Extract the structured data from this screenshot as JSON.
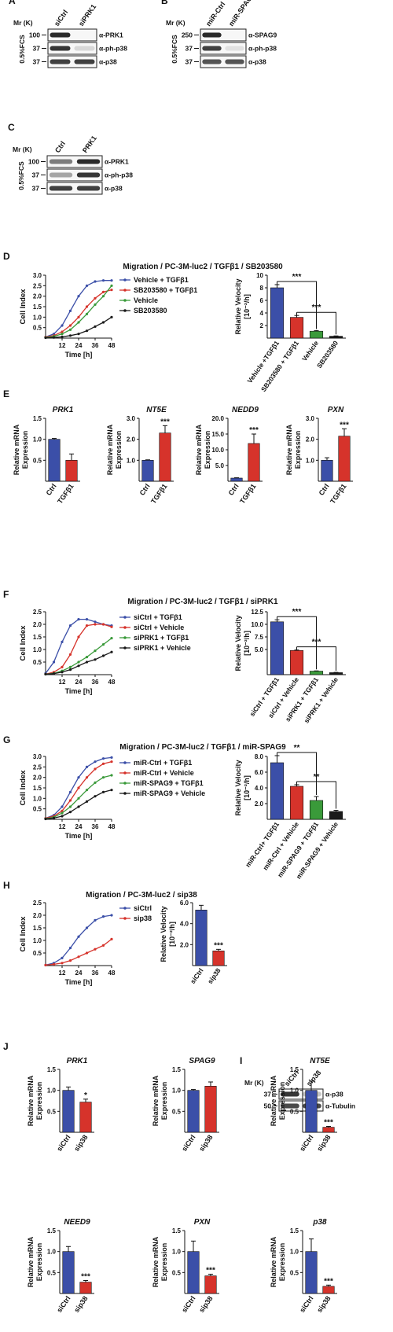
{
  "colors": {
    "blue": "#3b4fa8",
    "red": "#d6332b",
    "green": "#3a9a3a",
    "black": "#1a1a1a",
    "band": "#2b2b2b"
  },
  "blots": {
    "A": {
      "letter": "A",
      "mr": "Mr (K)",
      "lanes": [
        "siCtrl",
        "siPRK1"
      ],
      "condition": "0.5%FCS",
      "rows": [
        {
          "marker": "100",
          "label": "α-PRK1",
          "intensity": [
            1.0,
            0.0
          ]
        },
        {
          "marker": "37",
          "label": "α-ph-p38",
          "intensity": [
            0.95,
            0.15
          ]
        },
        {
          "marker": "37",
          "label": "α-p38",
          "intensity": [
            0.9,
            0.9
          ]
        }
      ]
    },
    "B": {
      "letter": "B",
      "mr": "Mr (K)",
      "lanes": [
        "miR-Ctrl",
        "miR-SPAG9"
      ],
      "condition": "0.5%FCS",
      "rows": [
        {
          "marker": "250",
          "label": "α-SPAG9",
          "intensity": [
            1.0,
            0.0
          ]
        },
        {
          "marker": "37",
          "label": "α-ph-p38",
          "intensity": [
            0.9,
            0.1
          ]
        },
        {
          "marker": "37",
          "label": "α-p38",
          "intensity": [
            0.8,
            0.8
          ]
        }
      ]
    },
    "C": {
      "letter": "C",
      "mr": "Mr (K)",
      "lanes": [
        "Ctrl",
        "PRK1"
      ],
      "condition": "0.5%FCS",
      "rows": [
        {
          "marker": "100",
          "label": "α-PRK1",
          "intensity": [
            0.6,
            1.0
          ]
        },
        {
          "marker": "37",
          "label": "α-ph-p38",
          "intensity": [
            0.4,
            0.95
          ]
        },
        {
          "marker": "37",
          "label": "α-p38",
          "intensity": [
            0.9,
            0.9
          ]
        }
      ]
    },
    "I": {
      "letter": "I",
      "mr": "Mr (K)",
      "lanes": [
        "siCtrl",
        "sip38"
      ],
      "condition": "",
      "rows": [
        {
          "marker": "37",
          "label": "α-p38",
          "intensity": [
            0.95,
            0.25
          ]
        },
        {
          "marker": "50",
          "label": "α-Tubulin",
          "intensity": [
            0.85,
            0.85
          ]
        }
      ]
    }
  },
  "chart_data": [
    {
      "panel": "D",
      "type": "line",
      "title": "Migration / PC-3M-luc2 / TGFβ1 / SB203580",
      "xlabel": "Time [h]",
      "ylabel": "Cell Index",
      "x": [
        0,
        6,
        12,
        18,
        24,
        30,
        36,
        42,
        48
      ],
      "xticks": [
        12,
        24,
        36,
        48
      ],
      "ylim": [
        0,
        3.0
      ],
      "yticks": [
        "0.5",
        "1.0",
        "1.5",
        "2.0",
        "2.5",
        "3.0"
      ],
      "ytickvals": [
        0.5,
        1.0,
        1.5,
        2.0,
        2.5,
        3.0
      ],
      "series": [
        {
          "name": "Vehicle + TGFβ1",
          "color": "blue",
          "values": [
            0.05,
            0.2,
            0.6,
            1.3,
            2.0,
            2.5,
            2.7,
            2.75,
            2.75
          ]
        },
        {
          "name": "SB203580 + TGFβ1",
          "color": "red",
          "values": [
            0.05,
            0.12,
            0.3,
            0.6,
            1.0,
            1.5,
            1.9,
            2.2,
            2.3
          ]
        },
        {
          "name": "Vehicle",
          "color": "green",
          "values": [
            0.03,
            0.08,
            0.2,
            0.4,
            0.75,
            1.15,
            1.6,
            2.0,
            2.5
          ]
        },
        {
          "name": "SB203580",
          "color": "black",
          "values": [
            0.02,
            0.03,
            0.06,
            0.12,
            0.2,
            0.35,
            0.55,
            0.75,
            1.0
          ]
        }
      ]
    },
    {
      "panel": "D",
      "type": "bar",
      "ylabel": "Relative Velocity [10⁻²/h]",
      "categories": [
        "Vehicle +TGFβ1",
        "SB203580 + TGFβ1",
        "Vehicle",
        "SB203580"
      ],
      "values": [
        8.0,
        3.3,
        1.1,
        0.3
      ],
      "errors": [
        0.5,
        0.3,
        0.1,
        0.05
      ],
      "colors": [
        "blue",
        "red",
        "green",
        "black"
      ],
      "ylim": [
        0,
        10
      ],
      "yticks": [
        "2",
        "4",
        "6",
        "8",
        "10"
      ],
      "ytickvals": [
        2,
        4,
        6,
        8,
        10
      ],
      "significance": [
        {
          "from": 0,
          "to": 2,
          "label": "***"
        },
        {
          "from": 1,
          "to": 3,
          "label": "***"
        }
      ]
    },
    {
      "panel": "E",
      "type": "bar",
      "gene": "PRK1",
      "ylabel": "Relative mRNA Expression",
      "categories": [
        "Ctrl",
        "TGFβ1"
      ],
      "values": [
        1.0,
        0.5
      ],
      "errors": [
        0.02,
        0.15
      ],
      "colors": [
        "blue",
        "red"
      ],
      "ylim": [
        0,
        1.5
      ],
      "yticks": [
        "0.5",
        "1.0",
        "1.5"
      ],
      "ytickvals": [
        0.5,
        1.0,
        1.5
      ],
      "stars": [
        "",
        ""
      ]
    },
    {
      "panel": "E",
      "type": "bar",
      "gene": "NT5E",
      "ylabel": "Relative mRNA Expression",
      "categories": [
        "Ctrl",
        "TGFβ1"
      ],
      "values": [
        1.0,
        2.3
      ],
      "errors": [
        0.02,
        0.35
      ],
      "colors": [
        "blue",
        "red"
      ],
      "ylim": [
        0,
        3.0
      ],
      "yticks": [
        "1.0",
        "2.0",
        "3.0"
      ],
      "ytickvals": [
        1.0,
        2.0,
        3.0
      ],
      "stars": [
        "",
        "***"
      ]
    },
    {
      "panel": "E",
      "type": "bar",
      "gene": "NEDD9",
      "ylabel": "Relative mRNA Expression",
      "categories": [
        "Ctrl",
        "TGFβ1"
      ],
      "values": [
        1.0,
        12.0
      ],
      "errors": [
        0.1,
        3.0
      ],
      "colors": [
        "blue",
        "red"
      ],
      "ylim": [
        0,
        20
      ],
      "yticks": [
        "5.0",
        "10.0",
        "15.0",
        "20.0"
      ],
      "ytickvals": [
        5,
        10,
        15,
        20
      ],
      "stars": [
        "",
        "***"
      ]
    },
    {
      "panel": "E",
      "type": "bar",
      "gene": "PXN",
      "ylabel": "Relative mRNA Expression",
      "categories": [
        "Ctrl",
        "TGFβ1"
      ],
      "values": [
        1.0,
        2.15
      ],
      "errors": [
        0.12,
        0.35
      ],
      "colors": [
        "blue",
        "red"
      ],
      "ylim": [
        0,
        3.0
      ],
      "yticks": [
        "1.0",
        "2.0",
        "3.0"
      ],
      "ytickvals": [
        1.0,
        2.0,
        3.0
      ],
      "stars": [
        "",
        "***"
      ]
    },
    {
      "panel": "F",
      "type": "line",
      "title": "Migration / PC-3M-luc2 / TGFβ1 / siPRK1",
      "xlabel": "Time [h]",
      "ylabel": "Cell Index",
      "x": [
        0,
        6,
        12,
        18,
        24,
        30,
        36,
        42,
        48
      ],
      "xticks": [
        12,
        24,
        36,
        48
      ],
      "ylim": [
        0,
        2.5
      ],
      "yticks": [
        "0.5",
        "1.0",
        "1.5",
        "2.0",
        "2.5"
      ],
      "ytickvals": [
        0.5,
        1.0,
        1.5,
        2.0,
        2.5
      ],
      "series": [
        {
          "name": "siCtrl + TGFβ1",
          "color": "blue",
          "values": [
            0.05,
            0.5,
            1.3,
            1.95,
            2.2,
            2.2,
            2.1,
            2.0,
            1.95
          ]
        },
        {
          "name": "siCtrl + Vehicle",
          "color": "red",
          "values": [
            0.02,
            0.1,
            0.3,
            0.8,
            1.5,
            1.95,
            2.0,
            2.0,
            1.9
          ]
        },
        {
          "name": "siPRK1 + TGFβ1",
          "color": "green",
          "values": [
            0.02,
            0.05,
            0.15,
            0.3,
            0.5,
            0.7,
            0.95,
            1.2,
            1.45
          ]
        },
        {
          "name": "siPRK1 + Vehicle",
          "color": "black",
          "values": [
            0.02,
            0.04,
            0.1,
            0.2,
            0.35,
            0.5,
            0.6,
            0.75,
            0.9
          ]
        }
      ]
    },
    {
      "panel": "F",
      "type": "bar",
      "ylabel": "Relative Velocity [10⁻²/h]",
      "categories": [
        "siCtrl + TGFβ1",
        "siCtrl + Vehicle",
        "siPRK1 + TGFβ1",
        "siPRK1 + Vehicle"
      ],
      "values": [
        10.5,
        4.8,
        0.7,
        0.4
      ],
      "errors": [
        0.4,
        0.1,
        0.05,
        0.05
      ],
      "colors": [
        "blue",
        "red",
        "green",
        "black"
      ],
      "ylim": [
        0,
        12.5
      ],
      "yticks": [
        "5.0",
        "7.5",
        "10.0",
        "12.5"
      ],
      "ytickvals": [
        5,
        7.5,
        10,
        12.5
      ],
      "significance": [
        {
          "from": 0,
          "to": 2,
          "label": "***"
        },
        {
          "from": 1,
          "to": 3,
          "label": "***"
        }
      ]
    },
    {
      "panel": "G",
      "type": "line",
      "title": "Migration / PC-3M-luc2 / TGFβ1 / miR-SPAG9",
      "xlabel": "Time [h]",
      "ylabel": "Cell Index",
      "x": [
        0,
        6,
        12,
        18,
        24,
        30,
        36,
        42,
        48
      ],
      "xticks": [
        12,
        24,
        36,
        48
      ],
      "ylim": [
        0,
        3.0
      ],
      "yticks": [
        "0.5",
        "1.0",
        "1.5",
        "2.0",
        "2.5",
        "3.0"
      ],
      "ytickvals": [
        0.5,
        1.0,
        1.5,
        2.0,
        2.5,
        3.0
      ],
      "series": [
        {
          "name": "miR-Ctrl + TGFβ1",
          "color": "blue",
          "values": [
            0.05,
            0.2,
            0.6,
            1.3,
            2.0,
            2.5,
            2.75,
            2.9,
            2.95
          ]
        },
        {
          "name": "miR-Ctrl + Vehicle",
          "color": "red",
          "values": [
            0.05,
            0.15,
            0.4,
            0.9,
            1.5,
            2.0,
            2.4,
            2.65,
            2.75
          ]
        },
        {
          "name": "miR-SPAG9 + TGFβ1",
          "color": "green",
          "values": [
            0.03,
            0.1,
            0.3,
            0.6,
            1.0,
            1.4,
            1.75,
            2.0,
            2.1
          ]
        },
        {
          "name": "miR-SPAG9 + Vehicle",
          "color": "black",
          "values": [
            0.02,
            0.06,
            0.15,
            0.35,
            0.6,
            0.85,
            1.1,
            1.3,
            1.4
          ]
        }
      ]
    },
    {
      "panel": "G",
      "type": "bar",
      "ylabel": "Relative Velocity [10⁻²/h]",
      "categories": [
        "miR-Ctrl+ TGFβ1",
        "miR-Ctrl + Vehicle",
        "miR-SPAG9 + TGFβ1",
        "miR-SPAG9 + Vehicle"
      ],
      "values": [
        7.2,
        4.2,
        2.4,
        1.0
      ],
      "errors": [
        0.9,
        0.2,
        0.5,
        0.15
      ],
      "colors": [
        "blue",
        "red",
        "green",
        "black"
      ],
      "ylim": [
        0,
        8.0
      ],
      "yticks": [
        "2.0",
        "4.0",
        "6.0",
        "8.0"
      ],
      "ytickvals": [
        2,
        4,
        6,
        8
      ],
      "significance": [
        {
          "from": 0,
          "to": 2,
          "label": "**"
        },
        {
          "from": 1,
          "to": 3,
          "label": "**"
        }
      ]
    },
    {
      "panel": "H",
      "type": "line",
      "title": "Migration / PC-3M-luc2 / sip38",
      "xlabel": "Time [h]",
      "ylabel": "Cell Index",
      "x": [
        0,
        6,
        12,
        18,
        24,
        30,
        36,
        42,
        48
      ],
      "xticks": [
        12,
        24,
        36,
        48
      ],
      "ylim": [
        0,
        2.5
      ],
      "yticks": [
        "0.5",
        "1.0",
        "1.5",
        "2.0",
        "2.5"
      ],
      "ytickvals": [
        0.5,
        1.0,
        1.5,
        2.0,
        2.5
      ],
      "series": [
        {
          "name": "siCtrl",
          "color": "blue",
          "values": [
            0.02,
            0.1,
            0.3,
            0.7,
            1.15,
            1.5,
            1.8,
            1.95,
            2.0
          ]
        },
        {
          "name": "sip38",
          "color": "red",
          "values": [
            0.02,
            0.05,
            0.1,
            0.2,
            0.35,
            0.5,
            0.65,
            0.8,
            1.05
          ]
        }
      ]
    },
    {
      "panel": "H",
      "type": "bar",
      "ylabel": "Relative Velocity [10⁻²/h]",
      "categories": [
        "siCtrl",
        "sip38"
      ],
      "values": [
        5.3,
        1.4
      ],
      "errors": [
        0.45,
        0.15
      ],
      "colors": [
        "blue",
        "red"
      ],
      "ylim": [
        0,
        6.0
      ],
      "yticks": [
        "2.0",
        "4.0",
        "6.0"
      ],
      "ytickvals": [
        2,
        4,
        6
      ],
      "stars": [
        "",
        "***"
      ]
    },
    {
      "panel": "J",
      "type": "bar",
      "gene": "PRK1",
      "ylabel": "Relative mRNA Expression",
      "categories": [
        "siCtrl",
        "sip38"
      ],
      "values": [
        1.0,
        0.72
      ],
      "errors": [
        0.08,
        0.07
      ],
      "colors": [
        "blue",
        "red"
      ],
      "ylim": [
        0,
        1.5
      ],
      "yticks": [
        "0.5",
        "1.0",
        "1.5"
      ],
      "ytickvals": [
        0.5,
        1.0,
        1.5
      ],
      "stars": [
        "",
        "*"
      ]
    },
    {
      "panel": "J",
      "type": "bar",
      "gene": "SPAG9",
      "ylabel": "Relative mRNA Expression",
      "categories": [
        "siCtrl",
        "sip38"
      ],
      "values": [
        1.0,
        1.1
      ],
      "errors": [
        0.02,
        0.1
      ],
      "colors": [
        "blue",
        "red"
      ],
      "ylim": [
        0,
        1.5
      ],
      "yticks": [
        "0.5",
        "1.0",
        "1.5"
      ],
      "ytickvals": [
        0.5,
        1.0,
        1.5
      ],
      "stars": [
        "",
        ""
      ]
    },
    {
      "panel": "J",
      "type": "bar",
      "gene": "NT5E",
      "ylabel": "Relative mRNA Expression",
      "categories": [
        "siCtrl",
        "sip38"
      ],
      "values": [
        1.0,
        0.12
      ],
      "errors": [
        0.22,
        0.02
      ],
      "colors": [
        "blue",
        "red"
      ],
      "ylim": [
        0,
        1.5
      ],
      "yticks": [
        "0.5",
        "1.0",
        "1.5"
      ],
      "ytickvals": [
        0.5,
        1.0,
        1.5
      ],
      "stars": [
        "",
        "***"
      ]
    },
    {
      "panel": "J",
      "type": "bar",
      "gene": "NEED9",
      "ylabel": "Relative mRNA Expression",
      "categories": [
        "siCtrl",
        "sip38"
      ],
      "values": [
        1.0,
        0.27
      ],
      "errors": [
        0.12,
        0.04
      ],
      "colors": [
        "blue",
        "red"
      ],
      "ylim": [
        0,
        1.5
      ],
      "yticks": [
        "0.5",
        "1.0",
        "1.5"
      ],
      "ytickvals": [
        0.5,
        1.0,
        1.5
      ],
      "stars": [
        "",
        "***"
      ]
    },
    {
      "panel": "J",
      "type": "bar",
      "gene": "PXN",
      "ylabel": "Relative mRNA Expression",
      "categories": [
        "siCtrl",
        "sip38"
      ],
      "values": [
        1.0,
        0.42
      ],
      "errors": [
        0.25,
        0.04
      ],
      "colors": [
        "blue",
        "red"
      ],
      "ylim": [
        0,
        1.5
      ],
      "yticks": [
        "0.5",
        "1.0",
        "1.5"
      ],
      "ytickvals": [
        0.5,
        1.0,
        1.5
      ],
      "stars": [
        "",
        "***"
      ]
    },
    {
      "panel": "J",
      "type": "bar",
      "gene": "p38",
      "ylabel": "Relative mRNA Expression",
      "categories": [
        "siCtrl",
        "sip38"
      ],
      "values": [
        1.0,
        0.17
      ],
      "errors": [
        0.3,
        0.03
      ],
      "colors": [
        "blue",
        "red"
      ],
      "ylim": [
        0,
        1.5
      ],
      "yticks": [
        "0.5",
        "1.0",
        "1.5"
      ],
      "ytickvals": [
        0.5,
        1.0,
        1.5
      ],
      "stars": [
        "",
        "***"
      ]
    }
  ],
  "panels": {
    "D": "D",
    "E": "E",
    "F": "F",
    "G": "G",
    "H": "H",
    "J": "J"
  }
}
